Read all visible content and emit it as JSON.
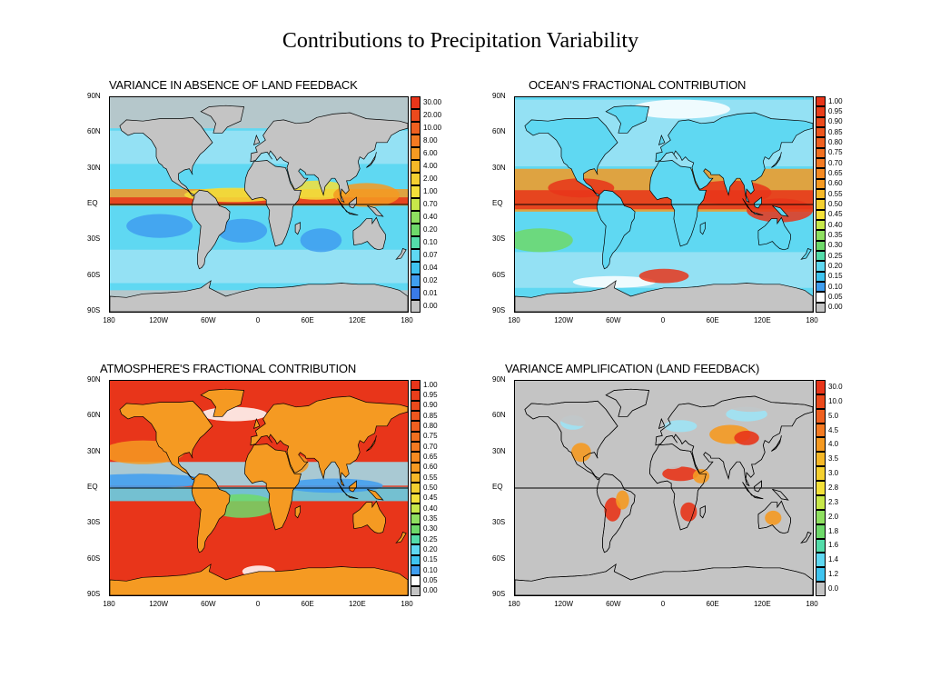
{
  "title": "Contributions to Precipitation Variability",
  "axes": {
    "lat_labels": [
      "90N",
      "60N",
      "30N",
      "EQ",
      "30S",
      "60S",
      "90S"
    ],
    "lon_labels": [
      "180",
      "120W",
      "60W",
      "0",
      "60E",
      "120E",
      "180"
    ]
  },
  "colors": {
    "land_gray": "#c4c4c4",
    "cyan": "#5fd8f2",
    "light_blue": "#9ee3f5",
    "blue": "#3f9ef0",
    "green": "#6ed96a",
    "yellow": "#f4e13a",
    "orange": "#f59a22",
    "red": "#e8351a"
  },
  "panels": [
    {
      "id": "variance",
      "title": "VARIANCE IN ABSENCE OF LAND FEEDBACK",
      "background": "#5fd8f2",
      "legend": [
        "30.00",
        "20.00",
        "10.00",
        "8.00",
        "6.00",
        "4.00",
        "2.00",
        "1.00",
        "0.70",
        "0.40",
        "0.20",
        "0.10",
        "0.07",
        "0.04",
        "0.02",
        "0.01",
        "0.00"
      ],
      "legend_colors": [
        "#e8351a",
        "#ec4a1c",
        "#f06020",
        "#f47a22",
        "#f59a22",
        "#f5b828",
        "#f4d030",
        "#f4e13a",
        "#c8e84a",
        "#8fe060",
        "#6ed96a",
        "#54dcaa",
        "#5fd8f2",
        "#3fc4f0",
        "#3f9ef0",
        "#3a7be8",
        "#c4c4c4"
      ]
    },
    {
      "id": "ocean",
      "title": "OCEAN'S FRACTIONAL CONTRIBUTION",
      "background": "#5fd8f2",
      "legend": [
        "1.00",
        "0.95",
        "0.90",
        "0.85",
        "0.80",
        "0.75",
        "0.70",
        "0.65",
        "0.60",
        "0.55",
        "0.50",
        "0.45",
        "0.40",
        "0.35",
        "0.30",
        "0.25",
        "0.20",
        "0.15",
        "0.10",
        "0.05",
        "0.00"
      ],
      "legend_colors": [
        "#e8351a",
        "#ea3e1b",
        "#ec4a1c",
        "#ee561e",
        "#f06020",
        "#f27020",
        "#f47a22",
        "#f58a22",
        "#f59a22",
        "#f5b828",
        "#f4d030",
        "#f4e13a",
        "#c8e84a",
        "#8fe060",
        "#6ed96a",
        "#54dcaa",
        "#5fd8f2",
        "#3fc4f0",
        "#3f9ef0",
        "#ffffff",
        "#c4c4c4"
      ]
    },
    {
      "id": "atmosphere",
      "title": "ATMOSPHERE'S FRACTIONAL CONTRIBUTION",
      "background": "#e8351a",
      "legend": [
        "1.00",
        "0.95",
        "0.90",
        "0.85",
        "0.80",
        "0.75",
        "0.70",
        "0.65",
        "0.60",
        "0.55",
        "0.50",
        "0.45",
        "0.40",
        "0.35",
        "0.30",
        "0.25",
        "0.20",
        "0.15",
        "0.10",
        "0.05",
        "0.00"
      ],
      "legend_colors": [
        "#e8351a",
        "#ea3e1b",
        "#ec4a1c",
        "#ee561e",
        "#f06020",
        "#f27020",
        "#f47a22",
        "#f58a22",
        "#f59a22",
        "#f5b828",
        "#f4d030",
        "#f4e13a",
        "#c8e84a",
        "#8fe060",
        "#6ed96a",
        "#54dcaa",
        "#5fd8f2",
        "#3fc4f0",
        "#3f9ef0",
        "#ffffff",
        "#c4c4c4"
      ]
    },
    {
      "id": "amplification",
      "title": "VARIANCE AMPLIFICATION (LAND FEEDBACK)",
      "background": "#c4c4c4",
      "legend": [
        "30.0",
        "10.0",
        "5.0",
        "4.5",
        "4.0",
        "3.5",
        "3.0",
        "2.8",
        "2.3",
        "2.0",
        "1.8",
        "1.6",
        "1.4",
        "1.2",
        "0.0"
      ],
      "legend_colors": [
        "#e8351a",
        "#ec4a1c",
        "#f06020",
        "#f47a22",
        "#f59a22",
        "#f5b828",
        "#f4d030",
        "#f4e13a",
        "#c8e84a",
        "#8fe060",
        "#6ed96a",
        "#54dcaa",
        "#5fd8f2",
        "#3fc4f0",
        "#c4c4c4"
      ]
    }
  ]
}
